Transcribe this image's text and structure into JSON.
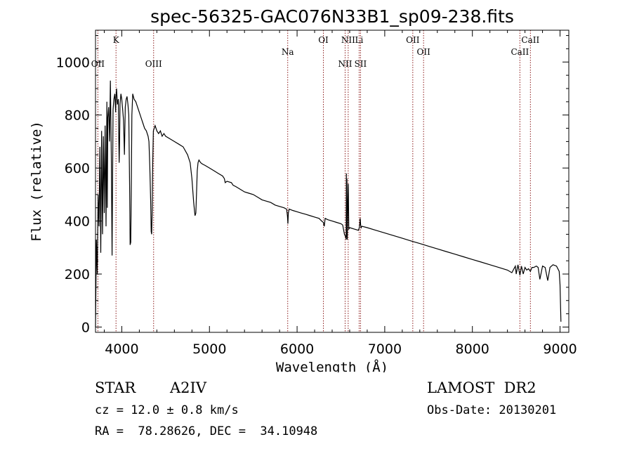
{
  "chart_data": {
    "type": "line",
    "title": "spec-56325-GAC076N33B1_sp09-238.fits",
    "xlabel": "Wavelength (Å)",
    "ylabel": "Flux (relative)",
    "xlim": [
      3700,
      9100
    ],
    "ylim": [
      -20,
      1120
    ],
    "x_ticks": [
      4000,
      5000,
      6000,
      7000,
      8000,
      9000
    ],
    "y_ticks": [
      0,
      200,
      400,
      600,
      800,
      1000
    ],
    "grid": false,
    "series": [
      {
        "x": [
          3700,
          3705,
          3710,
          3720,
          3730,
          3740,
          3750,
          3760,
          3770,
          3780,
          3790,
          3800,
          3810,
          3820,
          3830,
          3835,
          3840,
          3850,
          3860,
          3870,
          3880,
          3889,
          3900,
          3910,
          3920,
          3930,
          3934,
          3940,
          3950,
          3960,
          3965,
          3970,
          3975,
          3980,
          3990,
          4000,
          4010,
          4020,
          4030,
          4040,
          4050,
          4060,
          4070,
          4080,
          4090,
          4095,
          4102,
          4108,
          4115,
          4125,
          4140,
          4160,
          4180,
          4200,
          4220,
          4240,
          4260,
          4280,
          4300,
          4310,
          4320,
          4330,
          4335,
          4341,
          4347,
          4352,
          4360,
          4380,
          4400,
          4420,
          4440,
          4460,
          4480,
          4500,
          4550,
          4600,
          4650,
          4700,
          4750,
          4780,
          4800,
          4820,
          4835,
          4845,
          4852,
          4861,
          4870,
          4880,
          4890,
          4900,
          4920,
          4950,
          5000,
          5050,
          5100,
          5150,
          5170,
          5180,
          5200,
          5250,
          5270,
          5300,
          5350,
          5400,
          5450,
          5500,
          5550,
          5600,
          5650,
          5700,
          5750,
          5800,
          5850,
          5880,
          5890,
          5895,
          5900,
          5910,
          5950,
          6000,
          6050,
          6100,
          6150,
          6200,
          6250,
          6280,
          6300,
          6310,
          6320,
          6350,
          6400,
          6450,
          6500,
          6520,
          6540,
          6555,
          6560,
          6563,
          6565,
          6568,
          6572,
          6578,
          6584,
          6590,
          6600,
          6650,
          6700,
          6710,
          6716,
          6720,
          6725,
          6731,
          6740,
          6800,
          6900,
          7000,
          7100,
          7200,
          7300,
          7400,
          7500,
          7600,
          7700,
          7800,
          7900,
          8000,
          8100,
          8200,
          8300,
          8400,
          8450,
          8490,
          8500,
          8520,
          8542,
          8560,
          8580,
          8600,
          8620,
          8640,
          8662,
          8680,
          8700,
          8730,
          8750,
          8770,
          8800,
          8830,
          8860,
          8885,
          8920,
          8960,
          8990,
          9000,
          9010
        ],
        "y": [
          0,
          150,
          330,
          200,
          500,
          380,
          680,
          280,
          740,
          350,
          720,
          430,
          760,
          380,
          850,
          450,
          790,
          830,
          700,
          930,
          650,
          270,
          820,
          860,
          880,
          810,
          870,
          900,
          840,
          860,
          720,
          620,
          700,
          840,
          880,
          860,
          820,
          780,
          650,
          830,
          860,
          870,
          840,
          800,
          500,
          310,
          320,
          500,
          800,
          880,
          860,
          850,
          830,
          810,
          790,
          770,
          750,
          740,
          720,
          700,
          600,
          470,
          360,
          350,
          450,
          610,
          740,
          760,
          740,
          730,
          740,
          720,
          730,
          720,
          710,
          700,
          690,
          680,
          650,
          620,
          560,
          470,
          420,
          430,
          500,
          590,
          620,
          630,
          625,
          620,
          615,
          610,
          600,
          590,
          580,
          570,
          560,
          545,
          550,
          545,
          535,
          530,
          520,
          510,
          505,
          500,
          490,
          480,
          475,
          470,
          460,
          455,
          450,
          445,
          420,
          390,
          430,
          445,
          440,
          435,
          430,
          425,
          420,
          415,
          410,
          400,
          395,
          380,
          410,
          405,
          400,
          395,
          390,
          385,
          350,
          340,
          330,
          580,
          340,
          560,
          330,
          450,
          540,
          370,
          375,
          370,
          365,
          375,
          390,
          410,
          385,
          375,
          380,
          375,
          365,
          355,
          345,
          335,
          325,
          315,
          305,
          295,
          285,
          275,
          265,
          255,
          245,
          235,
          225,
          215,
          205,
          230,
          200,
          235,
          195,
          230,
          200,
          225,
          215,
          220,
          210,
          225,
          225,
          230,
          225,
          180,
          230,
          225,
          175,
          225,
          235,
          230,
          210,
          160,
          20
        ]
      }
    ],
    "lines_top": [
      {
        "label": "K",
        "x": 3934
      },
      {
        "label": "OI",
        "x": 6300
      },
      {
        "label": "NII",
        "x": 6583
      },
      {
        "label": "Li",
        "x": 6708
      },
      {
        "label": "OII",
        "x": 7320
      },
      {
        "label": "CaII",
        "x": 8662
      }
    ],
    "lines_mid": [
      {
        "label": "Na",
        "x": 5893
      },
      {
        "label": "OII",
        "x": 7443
      },
      {
        "label": "CaII",
        "x": 8542
      }
    ],
    "lines_low": [
      {
        "label": "OII",
        "x": 3727
      },
      {
        "label": "OIII",
        "x": 4363
      },
      {
        "label": "NII",
        "x": 6548
      },
      {
        "label": "SII",
        "x": 6724
      }
    ]
  },
  "info": {
    "object_type": "STAR",
    "subclass": "A2IV",
    "survey": "LAMOST  DR2",
    "cz": "cz = 12.0 ± 0.8 km/s",
    "obs_date": "Obs-Date: 20130201",
    "radec": "RA =  78.28626, DEC =  34.10948"
  },
  "colors": {
    "spectrum": "#000000",
    "line_marker": "#8b1a1a",
    "axes": "#000000"
  }
}
